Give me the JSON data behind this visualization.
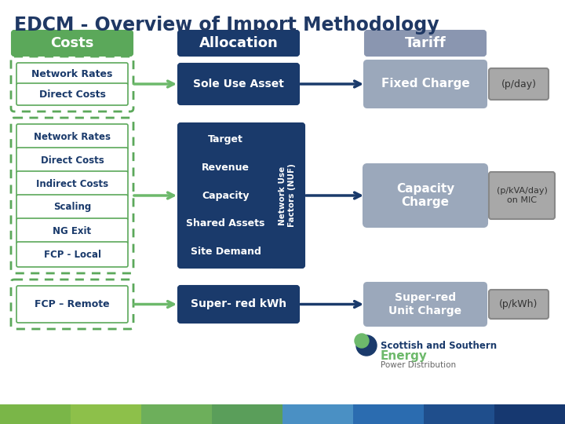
{
  "title": "EDCM - Overview of Import Methodology",
  "title_color": "#1F3864",
  "bg_color": "#FFFFFF",
  "costs_header": "Costs",
  "allocation_header": "Allocation",
  "tariff_header": "Tariff",
  "row1_costs": [
    "Network Rates",
    "Direct Costs"
  ],
  "row1_allocation": "Sole Use Asset",
  "row1_tariff": "Fixed Charge",
  "row1_unit": "(p/day)",
  "row2_costs": [
    "Network Rates",
    "Direct Costs",
    "Indirect Costs",
    "Scaling",
    "NG Exit",
    "FCP - Local"
  ],
  "row2_allocation_main": [
    "Target",
    "Revenue",
    "Capacity",
    "Shared Assets",
    "Site Demand"
  ],
  "row2_allocation_side": "Network Use\nFactors (NUF)",
  "row2_tariff": "Capacity\nCharge",
  "row2_unit": "(p/kVA/day)\non MIC",
  "row3_costs": [
    "FCP – Remote"
  ],
  "row3_allocation": "Super- red kWh",
  "row3_tariff": "Super-red\nUnit Charge",
  "row3_unit": "(p/kWh)",
  "green_solid": "#5BA85A",
  "blue_dark": "#1A3A6B",
  "grey_header": "#8A96B0",
  "grey_tariff": "#9BA8BB",
  "grey_unit": "#A8A8A8",
  "arrow_green": "#6DB96B",
  "arrow_blue": "#1A3A6B",
  "footer_colors": [
    "#7AB648",
    "#8DC04A",
    "#6DAF5B",
    "#5A9E5A",
    "#4A90C4",
    "#2B6CB0",
    "#1F4E8C",
    "#163870"
  ],
  "sse_text1": "Scottish and Southern",
  "sse_text2": "Energy",
  "sse_text3": "Power Distribution",
  "sse_color1": "#1A3A6B",
  "sse_color2": "#6DB96B",
  "sse_color3": "#666666"
}
